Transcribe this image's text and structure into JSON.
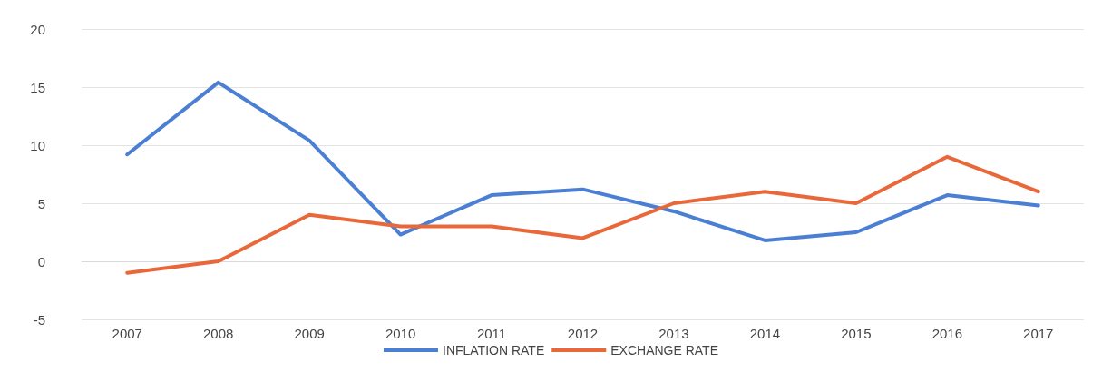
{
  "chart_data": {
    "type": "line",
    "categories": [
      "2007",
      "2008",
      "2009",
      "2010",
      "2011",
      "2012",
      "2013",
      "2014",
      "2015",
      "2016",
      "2017"
    ],
    "series": [
      {
        "name": "INFLATION RATE",
        "color": "#4a7fd4",
        "values": [
          9.2,
          15.4,
          10.4,
          2.3,
          5.7,
          6.2,
          4.3,
          1.8,
          2.5,
          5.7,
          4.8
        ]
      },
      {
        "name": "EXCHANGE RATE",
        "color": "#e8683a",
        "values": [
          -1,
          0,
          4,
          3,
          3,
          2,
          5,
          6,
          5,
          9,
          6
        ]
      }
    ],
    "ylim": [
      -5,
      20
    ],
    "yticks": [
      -5,
      0,
      5,
      10,
      15,
      20
    ],
    "grid": "y",
    "legend": "bottom",
    "marker": "none",
    "line_style": "solid"
  }
}
